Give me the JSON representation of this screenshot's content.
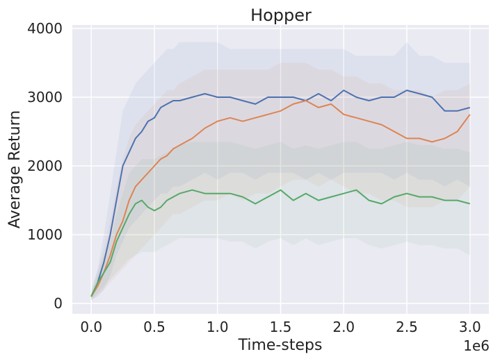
{
  "chart_data": {
    "type": "line",
    "title": "Hopper",
    "xlabel": "Time-steps",
    "ylabel": "Average Return",
    "x_offset_label": "1e6",
    "xlim": [
      -0.15,
      3.15
    ],
    "ylim": [
      -150,
      4050
    ],
    "x_ticks": [
      0.0,
      0.5,
      1.0,
      1.5,
      2.0,
      2.5,
      3.0
    ],
    "x_tick_labels": [
      "0.0",
      "0.5",
      "1.0",
      "1.5",
      "2.0",
      "2.5",
      "3.0"
    ],
    "y_ticks": [
      0,
      1000,
      2000,
      3000,
      4000
    ],
    "y_tick_labels": [
      "0",
      "1000",
      "2000",
      "3000",
      "4000"
    ],
    "grid": true,
    "legend": "none",
    "colors": {
      "background": "#eaeaf2",
      "grid": "#ffffff",
      "blue": "#4c72b0",
      "orange": "#dd8452",
      "green": "#55a868"
    },
    "x": [
      0.0,
      0.05,
      0.1,
      0.15,
      0.2,
      0.25,
      0.3,
      0.35,
      0.4,
      0.45,
      0.5,
      0.55,
      0.6,
      0.65,
      0.7,
      0.8,
      0.9,
      1.0,
      1.1,
      1.2,
      1.3,
      1.4,
      1.5,
      1.6,
      1.7,
      1.8,
      1.9,
      2.0,
      2.1,
      2.2,
      2.3,
      2.4,
      2.5,
      2.6,
      2.7,
      2.8,
      2.9,
      3.0
    ],
    "series": [
      {
        "color": "#4c72b0",
        "values": [
          100,
          300,
          600,
          1000,
          1500,
          2000,
          2200,
          2400,
          2500,
          2650,
          2700,
          2850,
          2900,
          2950,
          2950,
          3000,
          3050,
          3000,
          3000,
          2950,
          2900,
          3000,
          3000,
          3000,
          2950,
          3050,
          2950,
          3100,
          3000,
          2950,
          3000,
          3000,
          3100,
          3050,
          3000,
          2800,
          2800,
          2850
        ],
        "band_low": [
          50,
          100,
          200,
          400,
          700,
          900,
          1100,
          1200,
          1300,
          1400,
          1500,
          1600,
          1600,
          1700,
          1700,
          1800,
          1900,
          1800,
          1900,
          1900,
          1800,
          1900,
          1900,
          1900,
          1800,
          1900,
          1800,
          1900,
          1900,
          1900,
          1900,
          1800,
          1900,
          1800,
          1800,
          1700,
          1800,
          1700
        ],
        "band_high": [
          200,
          500,
          1000,
          1600,
          2200,
          2800,
          3000,
          3200,
          3300,
          3400,
          3500,
          3600,
          3700,
          3700,
          3800,
          3800,
          3800,
          3800,
          3700,
          3700,
          3700,
          3700,
          3700,
          3700,
          3700,
          3700,
          3700,
          3700,
          3600,
          3600,
          3600,
          3600,
          3800,
          3600,
          3600,
          3500,
          3500,
          3500
        ]
      },
      {
        "color": "#dd8452",
        "values": [
          100,
          250,
          450,
          700,
          1000,
          1200,
          1500,
          1700,
          1800,
          1900,
          2000,
          2100,
          2150,
          2250,
          2300,
          2400,
          2550,
          2650,
          2700,
          2650,
          2700,
          2750,
          2800,
          2900,
          2950,
          2850,
          2900,
          2750,
          2700,
          2650,
          2600,
          2500,
          2400,
          2400,
          2350,
          2400,
          2500,
          2750
        ],
        "band_low": [
          50,
          120,
          200,
          300,
          400,
          500,
          600,
          700,
          800,
          900,
          1000,
          1100,
          1200,
          1300,
          1300,
          1400,
          1500,
          1500,
          1600,
          1500,
          1600,
          1600,
          1700,
          1800,
          1800,
          1700,
          1800,
          1700,
          1600,
          1600,
          1500,
          1500,
          1400,
          1400,
          1400,
          1500,
          1500,
          1700
        ],
        "band_high": [
          150,
          450,
          800,
          1200,
          1700,
          2100,
          2400,
          2600,
          2700,
          2800,
          2900,
          3000,
          3100,
          3100,
          3200,
          3300,
          3400,
          3400,
          3400,
          3400,
          3400,
          3400,
          3500,
          3500,
          3500,
          3400,
          3400,
          3300,
          3300,
          3200,
          3200,
          3100,
          3100,
          3100,
          3000,
          3100,
          3100,
          3200
        ]
      },
      {
        "color": "#55a868",
        "values": [
          100,
          300,
          450,
          600,
          900,
          1100,
          1300,
          1450,
          1500,
          1400,
          1350,
          1400,
          1500,
          1550,
          1600,
          1650,
          1600,
          1600,
          1600,
          1550,
          1450,
          1550,
          1650,
          1500,
          1600,
          1500,
          1550,
          1600,
          1650,
          1500,
          1450,
          1550,
          1600,
          1550,
          1550,
          1500,
          1500,
          1450
        ],
        "band_low": [
          50,
          150,
          250,
          350,
          450,
          550,
          650,
          700,
          750,
          750,
          750,
          800,
          850,
          900,
          950,
          950,
          950,
          950,
          900,
          900,
          800,
          900,
          950,
          850,
          950,
          850,
          900,
          950,
          950,
          850,
          800,
          850,
          900,
          850,
          850,
          800,
          800,
          700
        ],
        "band_high": [
          150,
          450,
          700,
          900,
          1300,
          1600,
          1900,
          2000,
          2100,
          2100,
          2100,
          2150,
          2200,
          2250,
          2300,
          2350,
          2350,
          2350,
          2350,
          2300,
          2250,
          2300,
          2350,
          2250,
          2300,
          2250,
          2300,
          2350,
          2350,
          2250,
          2250,
          2300,
          2350,
          2300,
          2300,
          2250,
          2250,
          2200
        ]
      }
    ]
  }
}
